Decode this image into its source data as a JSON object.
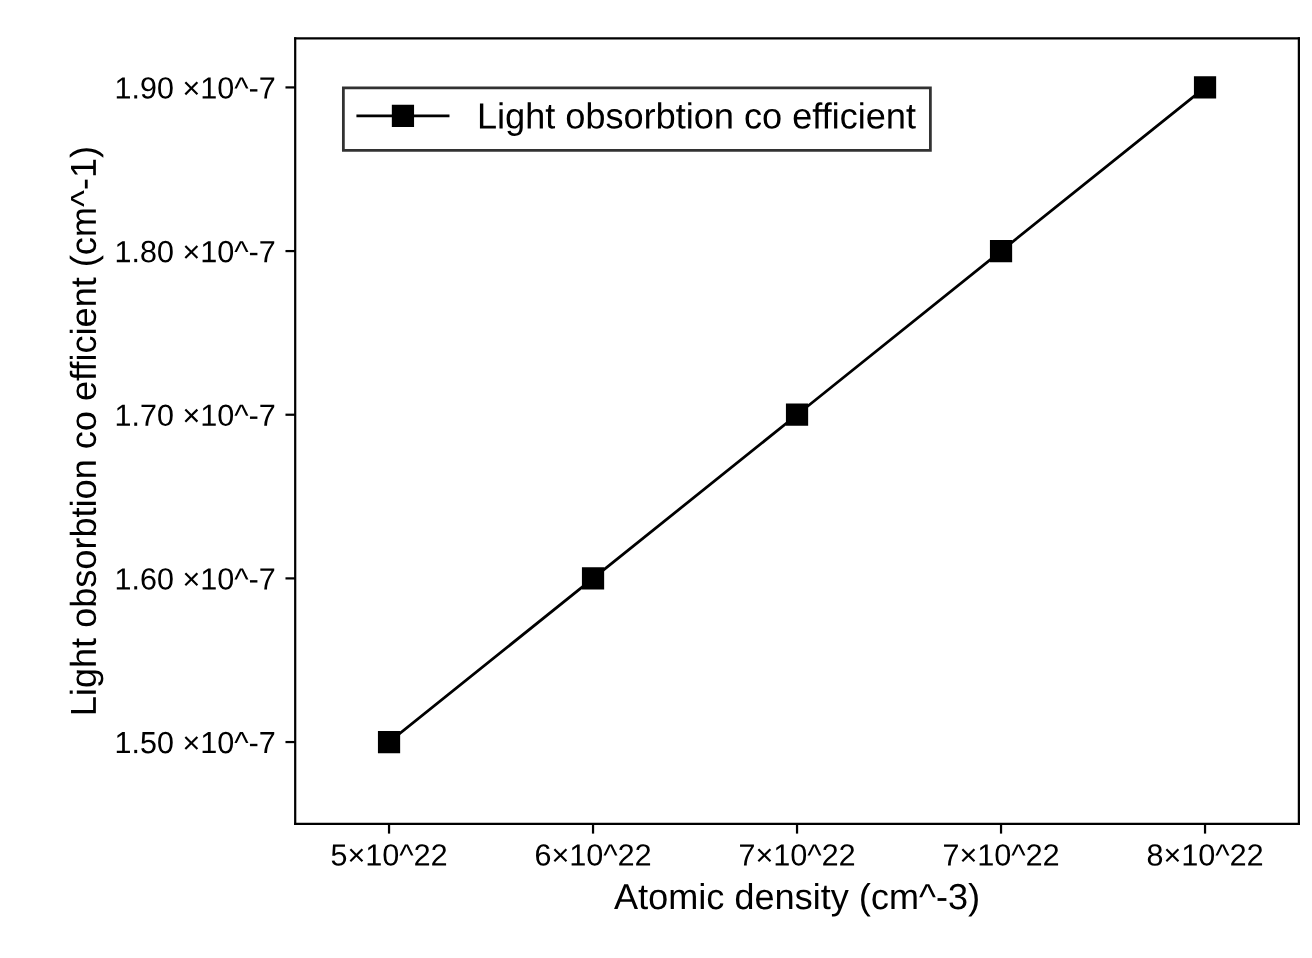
{
  "chart_data": {
    "type": "line",
    "xlabel": "Atomic density (cm^-3)",
    "ylabel": "Light obsorbtion co efficient (cm^-1)",
    "categories": [
      "5×10^22",
      "6×10^22",
      "7×10^22",
      "7×10^22",
      "8×10^22"
    ],
    "series": [
      {
        "name": "Light obsorbtion co efficient",
        "color": "#000000",
        "values": [
          1.5e-07,
          1.6e-07,
          1.7e-07,
          1.8e-07,
          1.9e-07
        ]
      }
    ],
    "ylim": [
      1.45e-07,
      1.93e-07
    ],
    "yticks": [
      {
        "value": 1.5e-07,
        "label": "1.50 ×10^-7"
      },
      {
        "value": 1.6e-07,
        "label": "1.60 ×10^-7"
      },
      {
        "value": 1.7e-07,
        "label": "1.70 ×10^-7"
      },
      {
        "value": 1.8e-07,
        "label": "1.80 ×10^-7"
      },
      {
        "value": 1.9e-07,
        "label": "1.90 ×10^-7"
      }
    ],
    "marker": "square",
    "line_style": "solid",
    "legend": "top left",
    "grid": false
  }
}
